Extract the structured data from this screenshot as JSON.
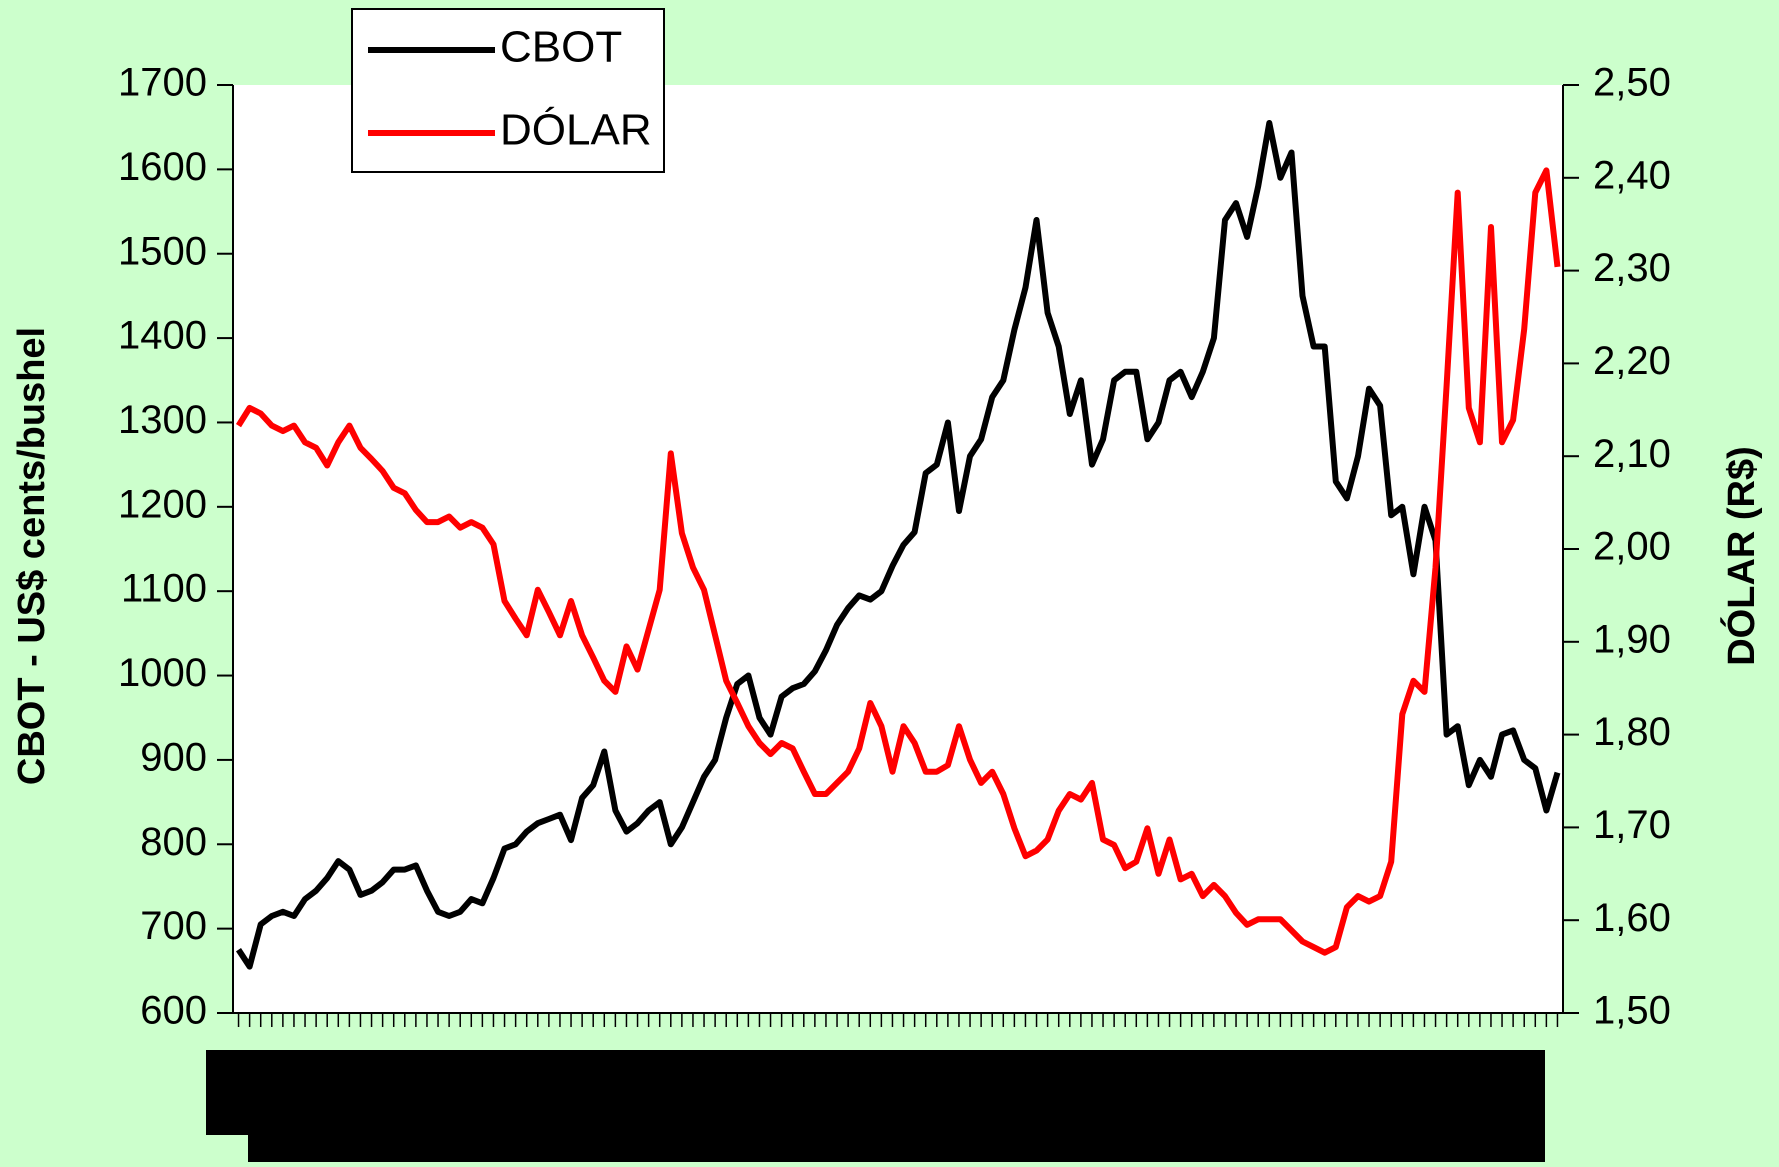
{
  "chart_data": {
    "type": "line",
    "categories": [
      null,
      null,
      null,
      null,
      null,
      null,
      null,
      null,
      null,
      null,
      null,
      null,
      null,
      null,
      null,
      null,
      null,
      null,
      null,
      null,
      null,
      null,
      null,
      null,
      null,
      null,
      null,
      null,
      null,
      null,
      null,
      null,
      null,
      null,
      null,
      null,
      null,
      null,
      null,
      null,
      null,
      null,
      null,
      null,
      null,
      null,
      null,
      null,
      null,
      null,
      null,
      null,
      null,
      null,
      null,
      null,
      null,
      null,
      null,
      null,
      null,
      null,
      null,
      null,
      null,
      null,
      null,
      null,
      null,
      null,
      null,
      null,
      null,
      null,
      null,
      null,
      null,
      null,
      null,
      null,
      null,
      null,
      null,
      null,
      null,
      null,
      null,
      null,
      null,
      null,
      null,
      null,
      null,
      null,
      null,
      null,
      null,
      null,
      null,
      null,
      null,
      null,
      null,
      null,
      null,
      null,
      null,
      null,
      null,
      null,
      null,
      null,
      null,
      null,
      null,
      null,
      null,
      null,
      null,
      null
    ],
    "series": [
      {
        "name": "CBOT",
        "color": "#000000",
        "axis": "y",
        "values": [
          675,
          655,
          705,
          715,
          720,
          715,
          735,
          745,
          760,
          780,
          770,
          740,
          745,
          755,
          770,
          770,
          775,
          745,
          720,
          715,
          720,
          735,
          730,
          760,
          795,
          800,
          815,
          825,
          830,
          835,
          805,
          855,
          870,
          910,
          840,
          815,
          825,
          840,
          850,
          800,
          820,
          850,
          880,
          900,
          950,
          990,
          1000,
          950,
          930,
          975,
          985,
          990,
          1005,
          1030,
          1060,
          1080,
          1095,
          1090,
          1100,
          1130,
          1155,
          1170,
          1240,
          1250,
          1300,
          1195,
          1260,
          1280,
          1330,
          1350,
          1410,
          1460,
          1540,
          1430,
          1390,
          1310,
          1350,
          1250,
          1280,
          1350,
          1360,
          1360,
          1280,
          1300,
          1350,
          1360,
          1330,
          1360,
          1400,
          1540,
          1560,
          1520,
          1580,
          1655,
          1590,
          1620,
          1450,
          1390,
          1390,
          1230,
          1210,
          1260,
          1340,
          1320,
          1190,
          1200,
          1120,
          1200,
          1160,
          930,
          940,
          870,
          900,
          880,
          930,
          935,
          900,
          890,
          840,
          885
        ]
      },
      {
        "name": "DÓLAR",
        "color": "#ff0000",
        "axis": "y2",
        "values": [
          2.133,
          2.152,
          2.146,
          2.133,
          2.127,
          2.133,
          2.115,
          2.109,
          2.09,
          2.115,
          2.133,
          2.109,
          2.097,
          2.084,
          2.066,
          2.06,
          2.042,
          2.029,
          2.029,
          2.035,
          2.023,
          2.029,
          2.023,
          2.005,
          1.944,
          1.925,
          1.907,
          1.956,
          1.932,
          1.907,
          1.944,
          1.907,
          1.883,
          1.858,
          1.846,
          1.895,
          1.87,
          1.913,
          1.956,
          2.103,
          2.017,
          1.98,
          1.956,
          1.907,
          1.858,
          1.834,
          1.809,
          1.791,
          1.779,
          1.791,
          1.785,
          1.76,
          1.736,
          1.736,
          1.748,
          1.76,
          1.785,
          1.834,
          1.809,
          1.76,
          1.809,
          1.791,
          1.76,
          1.76,
          1.767,
          1.809,
          1.773,
          1.748,
          1.76,
          1.736,
          1.699,
          1.669,
          1.675,
          1.687,
          1.718,
          1.736,
          1.73,
          1.748,
          1.687,
          1.681,
          1.656,
          1.663,
          1.699,
          1.65,
          1.687,
          1.644,
          1.65,
          1.626,
          1.638,
          1.626,
          1.608,
          1.595,
          1.601,
          1.601,
          1.601,
          1.589,
          1.577,
          1.571,
          1.565,
          1.571,
          1.614,
          1.626,
          1.62,
          1.626,
          1.663,
          1.822,
          1.858,
          1.846,
          1.98,
          2.176,
          2.384,
          2.152,
          2.115,
          2.347,
          2.115,
          2.139,
          2.237,
          2.384,
          2.408,
          2.304
        ]
      }
    ],
    "y_label": "CBOT - US$ cents/bushel",
    "y2_label": "DÓLAR (R$)",
    "ylim": [
      600,
      1700
    ],
    "yticks": [
      600,
      700,
      800,
      900,
      1000,
      1100,
      1200,
      1300,
      1400,
      1500,
      1600,
      1700
    ],
    "y2lim": [
      1.5,
      2.5
    ],
    "y2ticks": [
      {
        "value": 1.5,
        "label": "1,50"
      },
      {
        "value": 1.6,
        "label": "1,60"
      },
      {
        "value": 1.7,
        "label": "1,70"
      },
      {
        "value": 1.8,
        "label": "1,80"
      },
      {
        "value": 1.9,
        "label": "1,90"
      },
      {
        "value": 2.0,
        "label": "2,00"
      },
      {
        "value": 2.1,
        "label": "2,10"
      },
      {
        "value": 2.2,
        "label": "2,20"
      },
      {
        "value": 2.3,
        "label": "2,30"
      },
      {
        "value": 2.4,
        "label": "2,40"
      },
      {
        "value": 2.5,
        "label": "2,50"
      }
    ],
    "grid": false,
    "legend": "top-left"
  }
}
